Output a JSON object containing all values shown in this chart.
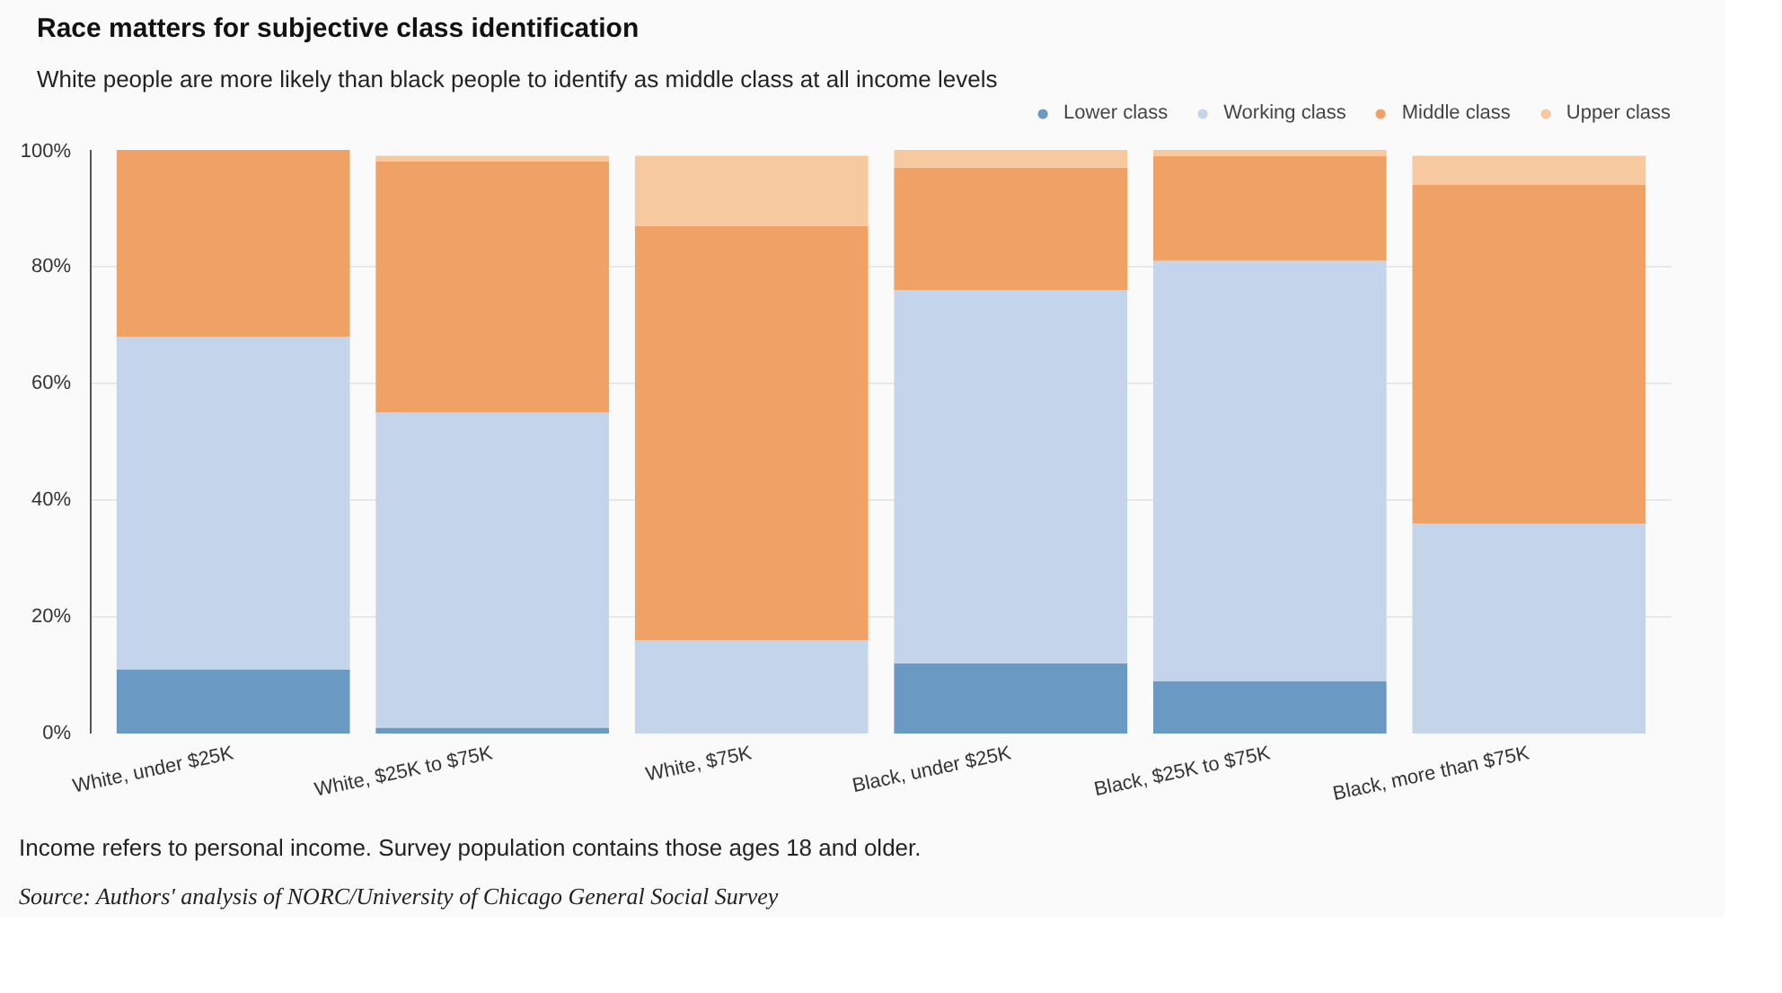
{
  "chart_data": {
    "type": "bar",
    "stacked": true,
    "title": "Race matters for subjective class identification",
    "subtitle": "White people are more likely than black people to identify as middle class at all income levels",
    "categories": [
      "White, under $25K",
      "White, $25K to $75K",
      "White, $75K",
      "Black, under $25K",
      "Black, $25K to $75K",
      "Black, more than $75K"
    ],
    "series": [
      {
        "name": "Lower class",
        "color": "#6a9ac4",
        "values": [
          11,
          1,
          0,
          12,
          9,
          0
        ]
      },
      {
        "name": "Working class",
        "color": "#c4d4ea",
        "values": [
          57,
          54,
          16,
          64,
          72,
          36
        ]
      },
      {
        "name": "Middle class",
        "color": "#f0a266",
        "values": [
          32,
          43,
          71,
          21,
          18,
          58
        ]
      },
      {
        "name": "Upper class",
        "color": "#f6c99e",
        "values": [
          0,
          1,
          12,
          3,
          1,
          5
        ]
      }
    ],
    "ylim": [
      0,
      100
    ],
    "yticks": [
      {
        "value": 0,
        "label": "0%"
      },
      {
        "value": 20,
        "label": "20%"
      },
      {
        "value": 40,
        "label": "40%"
      },
      {
        "value": 60,
        "label": "60%"
      },
      {
        "value": 80,
        "label": "80%"
      },
      {
        "value": 100,
        "label": "100%"
      }
    ],
    "grid": "y",
    "legend": "top right",
    "annotations": [
      "Income refers to personal income. Survey population contains those ages 18 and older.",
      "Source: Authors' analysis of NORC/University of Chicago General Social Survey"
    ]
  }
}
